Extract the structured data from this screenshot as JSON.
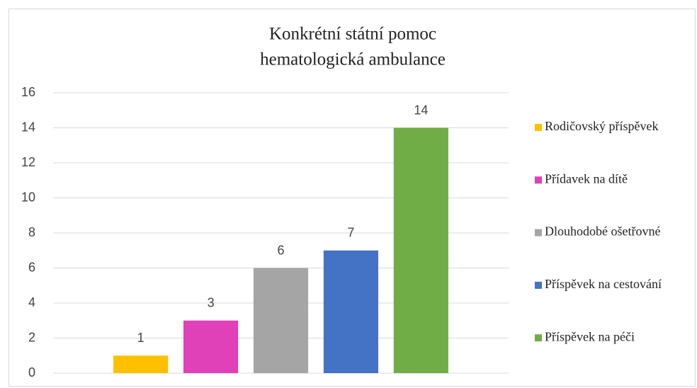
{
  "chart_data": {
    "type": "bar",
    "title": "Konkrétní státní pomoc",
    "subtitle": "hematologická ambulance",
    "series": [
      {
        "name": "Rodičovský příspěvek",
        "color": "#ffc000",
        "values": [
          1
        ]
      },
      {
        "name": "Přídavek na dítě",
        "color": "#e040b8",
        "values": [
          3
        ]
      },
      {
        "name": "Dlouhodobé ošetřovné",
        "color": "#a5a5a5",
        "values": [
          6
        ]
      },
      {
        "name": "Příspěvek na cestování",
        "color": "#4472c4",
        "values": [
          7
        ]
      },
      {
        "name": "Příspěvek na péči",
        "color": "#70ad47",
        "values": [
          14
        ]
      }
    ],
    "ylim": [
      0,
      16
    ],
    "yticks": [
      0,
      2,
      4,
      6,
      8,
      10,
      12,
      14,
      16
    ],
    "grid": true,
    "legend": "right"
  }
}
